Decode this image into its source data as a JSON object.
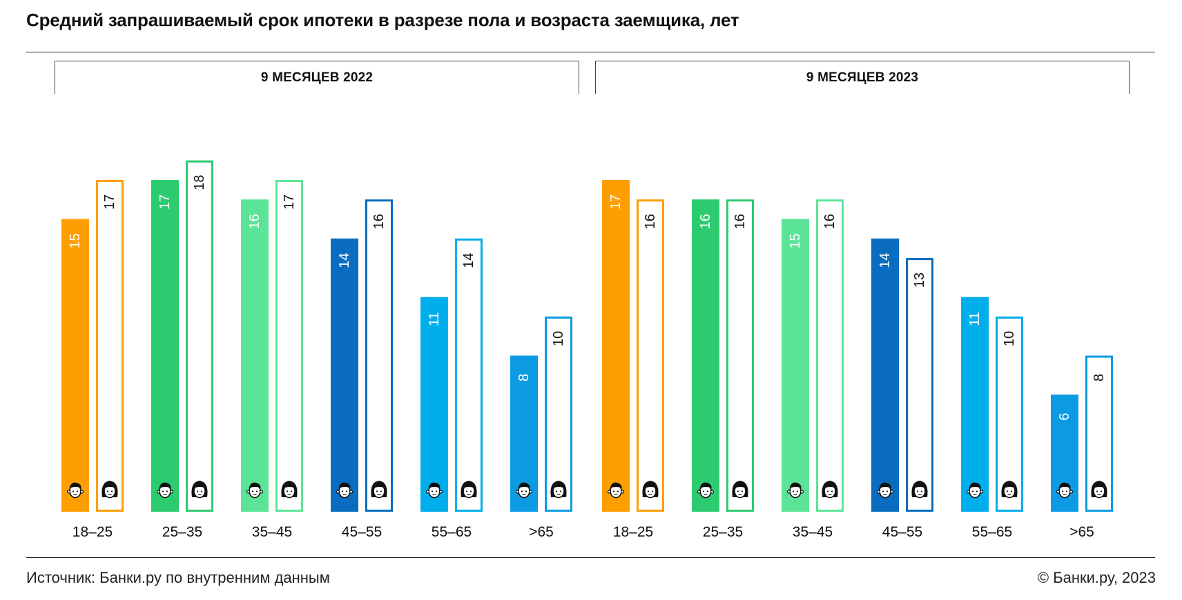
{
  "title": "Средний запрашиваемый срок ипотеки в разрезе пола и возраста заемщика, лет",
  "colors": {
    "18–25": "#FF9E00",
    "25–35": "#2DCB6F",
    "35–45": "#5BE497",
    "45–55": "#0A6CBE",
    "55–65": "#00AEEB",
    ">65": "#0C9BE3"
  },
  "icons": [
    "man-face-icon",
    "woman-face-icon"
  ],
  "chart_data": {
    "type": "bar",
    "categories": [
      "18–25",
      "25–35",
      "35–45",
      "45–55",
      "55–65",
      ">65"
    ],
    "groups": [
      {
        "label": "9 МЕСЯЦЕВ 2022",
        "categories": [
          "18–25",
          "25–35",
          "35–45",
          "45–55",
          "55–65",
          ">65"
        ],
        "series": [
          {
            "values": [
              15,
              17,
              16,
              14,
              11,
              8
            ],
            "style": "filled",
            "icon": "man-face-icon"
          },
          {
            "values": [
              17,
              18,
              17,
              16,
              14,
              10
            ],
            "style": "outline",
            "icon": "woman-face-icon"
          }
        ]
      },
      {
        "label": "9 МЕСЯЦЕВ 2023",
        "categories": [
          "18–25",
          "25–35",
          "35–45",
          "45–55",
          "55–65",
          ">65"
        ],
        "series": [
          {
            "values": [
              17,
              16,
              15,
              14,
              11,
              6
            ],
            "style": "filled",
            "icon": "man-face-icon"
          },
          {
            "values": [
              16,
              16,
              16,
              13,
              10,
              8
            ],
            "style": "outline",
            "icon": "woman-face-icon"
          }
        ]
      }
    ],
    "ylim": [
      0,
      18
    ],
    "grid": false,
    "legend": "icons"
  },
  "footer": {
    "source": "Источник: Банки.ру по внутренним данным",
    "copyright": "© Банки.ру, 2023"
  }
}
